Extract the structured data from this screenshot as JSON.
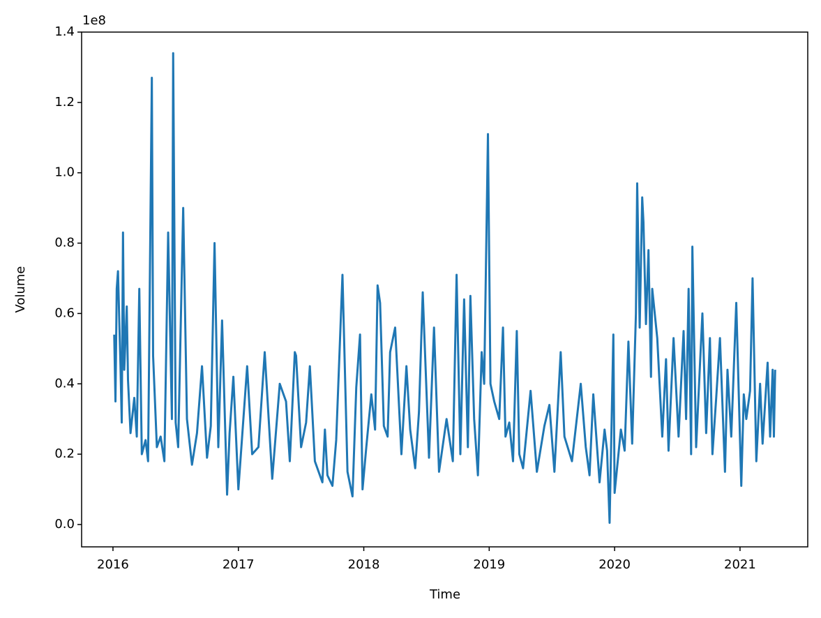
{
  "chart_data": {
    "type": "line",
    "xlabel": "Time",
    "ylabel": "Volume",
    "y_offset_label": "1e8",
    "x": [
      2016.01,
      2016.02,
      2016.03,
      2016.04,
      2016.06,
      2016.07,
      2016.08,
      2016.09,
      2016.11,
      2016.12,
      2016.14,
      2016.17,
      2016.19,
      2016.21,
      2016.23,
      2016.26,
      2016.28,
      2016.31,
      2016.32,
      2016.35,
      2016.38,
      2016.41,
      2016.44,
      2016.47,
      2016.48,
      2016.5,
      2016.52,
      2016.56,
      2016.59,
      2016.63,
      2016.67,
      2016.71,
      2016.75,
      2016.78,
      2016.81,
      2016.84,
      2016.87,
      2016.91,
      2016.93,
      2016.96,
      2017.0,
      2017.03,
      2017.07,
      2017.11,
      2017.16,
      2017.21,
      2017.27,
      2017.33,
      2017.38,
      2017.41,
      2017.45,
      2017.46,
      2017.5,
      2017.54,
      2017.57,
      2017.61,
      2017.67,
      2017.69,
      2017.71,
      2017.75,
      2017.78,
      2017.83,
      2017.87,
      2017.91,
      2017.94,
      2017.97,
      2017.99,
      2018.02,
      2018.06,
      2018.09,
      2018.11,
      2018.13,
      2018.16,
      2018.19,
      2018.21,
      2018.25,
      2018.3,
      2018.34,
      2018.37,
      2018.41,
      2018.44,
      2018.47,
      2018.52,
      2018.56,
      2018.6,
      2018.66,
      2018.71,
      2018.74,
      2018.77,
      2018.8,
      2018.83,
      2018.85,
      2018.88,
      2018.91,
      2018.94,
      2018.96,
      2018.99,
      2019.01,
      2019.04,
      2019.08,
      2019.11,
      2019.13,
      2019.16,
      2019.19,
      2019.22,
      2019.24,
      2019.27,
      2019.33,
      2019.38,
      2019.44,
      2019.48,
      2019.52,
      2019.57,
      2019.6,
      2019.66,
      2019.73,
      2019.77,
      2019.8,
      2019.83,
      2019.88,
      2019.92,
      2019.94,
      2019.96,
      2019.99,
      2020.0,
      2020.05,
      2020.08,
      2020.11,
      2020.14,
      2020.17,
      2020.18,
      2020.2,
      2020.22,
      2020.23,
      2020.25,
      2020.27,
      2020.29,
      2020.3,
      2020.34,
      2020.38,
      2020.41,
      2020.43,
      2020.47,
      2020.51,
      2020.55,
      2020.57,
      2020.59,
      2020.61,
      2020.62,
      2020.65,
      2020.68,
      2020.7,
      2020.73,
      2020.76,
      2020.78,
      2020.81,
      2020.84,
      2020.88,
      2020.9,
      2020.93,
      2020.97,
      2021.01,
      2021.03,
      2021.05,
      2021.08,
      2021.1,
      2021.13,
      2021.16,
      2021.18,
      2021.22,
      2021.24,
      2021.26,
      2021.27,
      2021.28
    ],
    "series": [
      {
        "color": "#1f77b4",
        "values": [
          0.54,
          0.35,
          0.67,
          0.72,
          0.45,
          0.29,
          0.83,
          0.44,
          0.62,
          0.41,
          0.26,
          0.36,
          0.25,
          0.67,
          0.2,
          0.24,
          0.18,
          1.27,
          0.48,
          0.22,
          0.25,
          0.18,
          0.83,
          0.3,
          1.34,
          0.29,
          0.22,
          0.9,
          0.3,
          0.17,
          0.26,
          0.45,
          0.19,
          0.28,
          0.8,
          0.22,
          0.58,
          0.085,
          0.26,
          0.42,
          0.1,
          0.25,
          0.45,
          0.2,
          0.22,
          0.49,
          0.13,
          0.4,
          0.35,
          0.18,
          0.49,
          0.48,
          0.22,
          0.29,
          0.45,
          0.18,
          0.12,
          0.27,
          0.14,
          0.11,
          0.24,
          0.71,
          0.15,
          0.08,
          0.39,
          0.54,
          0.1,
          0.22,
          0.37,
          0.27,
          0.68,
          0.63,
          0.28,
          0.25,
          0.49,
          0.56,
          0.2,
          0.45,
          0.27,
          0.16,
          0.32,
          0.66,
          0.19,
          0.56,
          0.15,
          0.3,
          0.18,
          0.71,
          0.2,
          0.64,
          0.22,
          0.65,
          0.3,
          0.14,
          0.49,
          0.4,
          1.11,
          0.4,
          0.35,
          0.3,
          0.56,
          0.25,
          0.29,
          0.18,
          0.55,
          0.2,
          0.16,
          0.38,
          0.15,
          0.28,
          0.34,
          0.15,
          0.49,
          0.25,
          0.18,
          0.4,
          0.22,
          0.14,
          0.37,
          0.12,
          0.27,
          0.21,
          0.005,
          0.54,
          0.09,
          0.27,
          0.21,
          0.52,
          0.23,
          0.6,
          0.97,
          0.56,
          0.93,
          0.86,
          0.57,
          0.78,
          0.42,
          0.67,
          0.53,
          0.25,
          0.47,
          0.21,
          0.53,
          0.25,
          0.55,
          0.3,
          0.67,
          0.2,
          0.79,
          0.22,
          0.45,
          0.6,
          0.26,
          0.53,
          0.2,
          0.36,
          0.53,
          0.15,
          0.44,
          0.25,
          0.63,
          0.11,
          0.37,
          0.3,
          0.38,
          0.7,
          0.18,
          0.4,
          0.23,
          0.46,
          0.25,
          0.44,
          0.25,
          0.44
        ]
      }
    ],
    "xlim": [
      2015.75,
      2021.54
    ],
    "xticks": [
      2016,
      2017,
      2018,
      2019,
      2020,
      2021
    ],
    "ylim": [
      -0.0635,
      1.4
    ],
    "yticks": [
      {
        "value": 0,
        "label": "0.0"
      },
      {
        "value": 0.2,
        "label": "0.2"
      },
      {
        "value": 0.4,
        "label": "0.4"
      },
      {
        "value": 0.6,
        "label": "0.6"
      },
      {
        "value": 0.8,
        "label": "0.8"
      },
      {
        "value": 1.0,
        "label": "1.0"
      },
      {
        "value": 1.2,
        "label": "1.2"
      },
      {
        "value": 1.4,
        "label": "1.4"
      }
    ],
    "grid": false
  }
}
